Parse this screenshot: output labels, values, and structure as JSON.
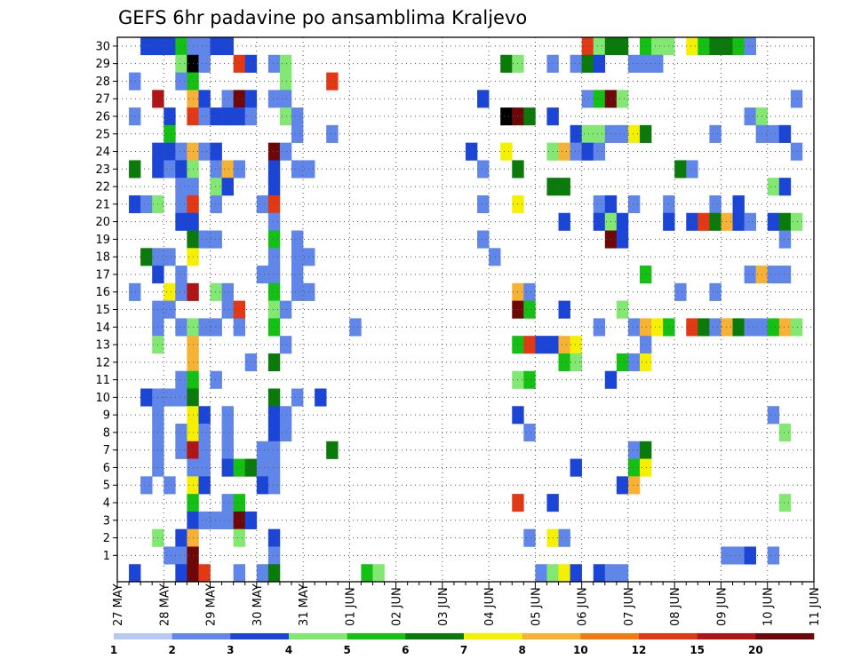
{
  "chart_data": {
    "type": "heatmap",
    "title": "GEFS 6hr padavine po ansamblima Kraljevo",
    "y_labels": [
      "1",
      "2",
      "3",
      "4",
      "5",
      "6",
      "7",
      "8",
      "9",
      "10",
      "11",
      "12",
      "13",
      "14",
      "15",
      "16",
      "17",
      "18",
      "19",
      "20",
      "21",
      "22",
      "23",
      "24",
      "25",
      "26",
      "27",
      "28",
      "29",
      "30"
    ],
    "x_labels": [
      "27 MAY",
      "28 MAY",
      "29 MAY",
      "30 MAY",
      "31 MAY",
      "01 JUN",
      "02 JUN",
      "03 JUN",
      "04 JUN",
      "05 JUN",
      "06 JUN",
      "07 JUN",
      "08 JUN",
      "09 JUN",
      "10 JUN",
      "11 JUN"
    ],
    "steps_per_day": 4,
    "legend": {
      "labels": [
        "1",
        "2",
        "3",
        "4",
        "5",
        "6",
        "7",
        "8",
        "10",
        "12",
        "15",
        "20"
      ],
      "colors": [
        "#b8c9f5",
        "#5f86e8",
        "#1a45d6",
        "#82e872",
        "#13c013",
        "#0a7a0a",
        "#f4f000",
        "#f7b236",
        "#f17a14",
        "#e23814",
        "#b01414",
        "#6e0808"
      ]
    },
    "cells": [
      [
        30,
        2,
        2
      ],
      [
        30,
        3,
        2
      ],
      [
        30,
        4,
        2
      ],
      [
        30,
        5,
        4
      ],
      [
        30,
        6,
        1
      ],
      [
        30,
        7,
        1
      ],
      [
        30,
        8,
        2
      ],
      [
        30,
        9,
        2
      ],
      [
        30,
        40,
        9
      ],
      [
        30,
        41,
        3
      ],
      [
        30,
        42,
        5
      ],
      [
        30,
        43,
        5
      ],
      [
        30,
        45,
        4
      ],
      [
        30,
        46,
        3
      ],
      [
        30,
        47,
        3
      ],
      [
        30,
        49,
        6
      ],
      [
        30,
        50,
        4
      ],
      [
        30,
        51,
        5
      ],
      [
        30,
        52,
        5
      ],
      [
        30,
        53,
        4
      ],
      [
        30,
        54,
        1
      ],
      [
        29,
        5,
        3
      ],
      [
        29,
        6,
        12
      ],
      [
        29,
        7,
        1
      ],
      [
        29,
        10,
        9
      ],
      [
        29,
        11,
        2
      ],
      [
        29,
        13,
        1
      ],
      [
        29,
        14,
        3
      ],
      [
        29,
        33,
        5
      ],
      [
        29,
        34,
        3
      ],
      [
        29,
        37,
        1
      ],
      [
        29,
        39,
        1
      ],
      [
        29,
        40,
        5
      ],
      [
        29,
        41,
        2
      ],
      [
        29,
        44,
        1
      ],
      [
        29,
        45,
        1
      ],
      [
        29,
        46,
        1
      ],
      [
        28,
        1,
        1
      ],
      [
        28,
        5,
        1
      ],
      [
        28,
        6,
        4
      ],
      [
        28,
        14,
        3
      ],
      [
        28,
        18,
        9
      ],
      [
        27,
        3,
        10
      ],
      [
        27,
        6,
        7
      ],
      [
        27,
        7,
        2
      ],
      [
        27,
        9,
        1
      ],
      [
        27,
        10,
        11
      ],
      [
        27,
        11,
        2
      ],
      [
        27,
        13,
        1
      ],
      [
        27,
        14,
        1
      ],
      [
        27,
        31,
        2
      ],
      [
        27,
        40,
        1
      ],
      [
        27,
        41,
        4
      ],
      [
        27,
        42,
        11
      ],
      [
        27,
        43,
        3
      ],
      [
        27,
        58,
        1
      ],
      [
        26,
        1,
        1
      ],
      [
        26,
        4,
        2
      ],
      [
        26,
        6,
        9
      ],
      [
        26,
        7,
        1
      ],
      [
        26,
        8,
        2
      ],
      [
        26,
        9,
        2
      ],
      [
        26,
        10,
        2
      ],
      [
        26,
        11,
        1
      ],
      [
        26,
        14,
        3
      ],
      [
        26,
        15,
        1
      ],
      [
        26,
        33,
        12
      ],
      [
        26,
        34,
        11
      ],
      [
        26,
        35,
        5
      ],
      [
        26,
        37,
        2
      ],
      [
        26,
        54,
        1
      ],
      [
        26,
        55,
        3
      ],
      [
        25,
        4,
        4
      ],
      [
        25,
        15,
        1
      ],
      [
        25,
        18,
        1
      ],
      [
        25,
        39,
        2
      ],
      [
        25,
        40,
        3
      ],
      [
        25,
        41,
        3
      ],
      [
        25,
        42,
        1
      ],
      [
        25,
        43,
        1
      ],
      [
        25,
        44,
        6
      ],
      [
        25,
        45,
        5
      ],
      [
        25,
        51,
        1
      ],
      [
        25,
        55,
        1
      ],
      [
        25,
        56,
        1
      ],
      [
        25,
        57,
        2
      ],
      [
        24,
        3,
        2
      ],
      [
        24,
        4,
        2
      ],
      [
        24,
        5,
        1
      ],
      [
        24,
        6,
        7
      ],
      [
        24,
        7,
        1
      ],
      [
        24,
        8,
        2
      ],
      [
        24,
        13,
        11
      ],
      [
        24,
        14,
        1
      ],
      [
        24,
        30,
        2
      ],
      [
        24,
        33,
        6
      ],
      [
        24,
        37,
        3
      ],
      [
        24,
        38,
        7
      ],
      [
        24,
        39,
        1
      ],
      [
        24,
        40,
        2
      ],
      [
        24,
        41,
        1
      ],
      [
        24,
        58,
        1
      ],
      [
        23,
        1,
        5
      ],
      [
        23,
        3,
        2
      ],
      [
        23,
        4,
        1
      ],
      [
        23,
        5,
        2
      ],
      [
        23,
        6,
        3
      ],
      [
        23,
        8,
        1
      ],
      [
        23,
        9,
        7
      ],
      [
        23,
        10,
        1
      ],
      [
        23,
        13,
        2
      ],
      [
        23,
        15,
        1
      ],
      [
        23,
        16,
        1
      ],
      [
        23,
        31,
        1
      ],
      [
        23,
        34,
        5
      ],
      [
        23,
        48,
        5
      ],
      [
        23,
        49,
        1
      ],
      [
        22,
        5,
        1
      ],
      [
        22,
        6,
        1
      ],
      [
        22,
        8,
        3
      ],
      [
        22,
        9,
        2
      ],
      [
        22,
        13,
        2
      ],
      [
        22,
        37,
        5
      ],
      [
        22,
        38,
        5
      ],
      [
        22,
        56,
        3
      ],
      [
        22,
        57,
        2
      ],
      [
        21,
        1,
        2
      ],
      [
        21,
        2,
        1
      ],
      [
        21,
        3,
        3
      ],
      [
        21,
        5,
        1
      ],
      [
        21,
        6,
        9
      ],
      [
        21,
        8,
        1
      ],
      [
        21,
        12,
        1
      ],
      [
        21,
        13,
        9
      ],
      [
        21,
        31,
        1
      ],
      [
        21,
        34,
        6
      ],
      [
        21,
        41,
        1
      ],
      [
        21,
        42,
        2
      ],
      [
        21,
        44,
        1
      ],
      [
        21,
        47,
        1
      ],
      [
        21,
        51,
        1
      ],
      [
        21,
        53,
        2
      ],
      [
        20,
        5,
        2
      ],
      [
        20,
        6,
        2
      ],
      [
        20,
        13,
        1
      ],
      [
        20,
        38,
        2
      ],
      [
        20,
        41,
        2
      ],
      [
        20,
        42,
        3
      ],
      [
        20,
        43,
        2
      ],
      [
        20,
        47,
        2
      ],
      [
        20,
        49,
        2
      ],
      [
        20,
        50,
        9
      ],
      [
        20,
        51,
        5
      ],
      [
        20,
        52,
        7
      ],
      [
        20,
        53,
        2
      ],
      [
        20,
        54,
        1
      ],
      [
        20,
        56,
        2
      ],
      [
        20,
        57,
        5
      ],
      [
        20,
        58,
        3
      ],
      [
        19,
        6,
        5
      ],
      [
        19,
        7,
        1
      ],
      [
        19,
        8,
        1
      ],
      [
        19,
        13,
        4
      ],
      [
        19,
        15,
        1
      ],
      [
        19,
        31,
        1
      ],
      [
        19,
        42,
        11
      ],
      [
        19,
        43,
        2
      ],
      [
        19,
        57,
        1
      ],
      [
        18,
        2,
        5
      ],
      [
        18,
        3,
        1
      ],
      [
        18,
        4,
        1
      ],
      [
        18,
        6,
        6
      ],
      [
        18,
        13,
        1
      ],
      [
        18,
        15,
        1
      ],
      [
        18,
        16,
        1
      ],
      [
        18,
        32,
        1
      ],
      [
        17,
        3,
        2
      ],
      [
        17,
        5,
        1
      ],
      [
        17,
        12,
        1
      ],
      [
        17,
        13,
        1
      ],
      [
        17,
        15,
        1
      ],
      [
        17,
        45,
        4
      ],
      [
        17,
        54,
        1
      ],
      [
        17,
        55,
        7
      ],
      [
        17,
        56,
        1
      ],
      [
        17,
        57,
        1
      ],
      [
        16,
        1,
        1
      ],
      [
        16,
        4,
        6
      ],
      [
        16,
        5,
        1
      ],
      [
        16,
        6,
        10
      ],
      [
        16,
        8,
        3
      ],
      [
        16,
        9,
        1
      ],
      [
        16,
        13,
        4
      ],
      [
        16,
        15,
        1
      ],
      [
        16,
        16,
        1
      ],
      [
        16,
        34,
        7
      ],
      [
        16,
        35,
        1
      ],
      [
        16,
        48,
        1
      ],
      [
        16,
        51,
        1
      ],
      [
        15,
        3,
        1
      ],
      [
        15,
        4,
        1
      ],
      [
        15,
        9,
        1
      ],
      [
        15,
        10,
        9
      ],
      [
        15,
        13,
        3
      ],
      [
        15,
        14,
        1
      ],
      [
        15,
        34,
        11
      ],
      [
        15,
        35,
        4
      ],
      [
        15,
        38,
        2
      ],
      [
        15,
        43,
        3
      ],
      [
        14,
        3,
        1
      ],
      [
        14,
        5,
        1
      ],
      [
        14,
        6,
        3
      ],
      [
        14,
        7,
        1
      ],
      [
        14,
        8,
        1
      ],
      [
        14,
        10,
        1
      ],
      [
        14,
        13,
        4
      ],
      [
        14,
        20,
        1
      ],
      [
        14,
        41,
        1
      ],
      [
        14,
        44,
        1
      ],
      [
        14,
        45,
        7
      ],
      [
        14,
        46,
        6
      ],
      [
        14,
        47,
        4
      ],
      [
        14,
        49,
        9
      ],
      [
        14,
        50,
        5
      ],
      [
        14,
        51,
        1
      ],
      [
        14,
        52,
        7
      ],
      [
        14,
        53,
        5
      ],
      [
        14,
        54,
        1
      ],
      [
        14,
        55,
        1
      ],
      [
        14,
        56,
        4
      ],
      [
        14,
        57,
        7
      ],
      [
        14,
        58,
        3
      ],
      [
        13,
        3,
        3
      ],
      [
        13,
        6,
        7
      ],
      [
        13,
        14,
        1
      ],
      [
        13,
        34,
        4
      ],
      [
        13,
        35,
        9
      ],
      [
        13,
        36,
        2
      ],
      [
        13,
        37,
        2
      ],
      [
        13,
        38,
        7
      ],
      [
        13,
        39,
        6
      ],
      [
        13,
        45,
        1
      ],
      [
        12,
        6,
        7
      ],
      [
        12,
        11,
        1
      ],
      [
        12,
        13,
        5
      ],
      [
        12,
        38,
        4
      ],
      [
        12,
        39,
        3
      ],
      [
        12,
        43,
        4
      ],
      [
        12,
        44,
        1
      ],
      [
        12,
        45,
        6
      ],
      [
        11,
        5,
        1
      ],
      [
        11,
        6,
        4
      ],
      [
        11,
        8,
        1
      ],
      [
        11,
        34,
        3
      ],
      [
        11,
        35,
        4
      ],
      [
        11,
        42,
        2
      ],
      [
        10,
        2,
        2
      ],
      [
        10,
        3,
        1
      ],
      [
        10,
        4,
        1
      ],
      [
        10,
        5,
        1
      ],
      [
        10,
        6,
        5
      ],
      [
        10,
        13,
        5
      ],
      [
        10,
        15,
        1
      ],
      [
        10,
        17,
        2
      ],
      [
        9,
        3,
        1
      ],
      [
        9,
        6,
        6
      ],
      [
        9,
        7,
        2
      ],
      [
        9,
        9,
        1
      ],
      [
        9,
        13,
        2
      ],
      [
        9,
        14,
        1
      ],
      [
        9,
        34,
        2
      ],
      [
        9,
        56,
        1
      ],
      [
        8,
        3,
        1
      ],
      [
        8,
        5,
        1
      ],
      [
        8,
        6,
        6
      ],
      [
        8,
        7,
        1
      ],
      [
        8,
        9,
        1
      ],
      [
        8,
        13,
        2
      ],
      [
        8,
        14,
        1
      ],
      [
        8,
        35,
        1
      ],
      [
        8,
        57,
        3
      ],
      [
        7,
        3,
        1
      ],
      [
        7,
        5,
        1
      ],
      [
        7,
        6,
        10
      ],
      [
        7,
        7,
        1
      ],
      [
        7,
        9,
        1
      ],
      [
        7,
        12,
        1
      ],
      [
        7,
        13,
        1
      ],
      [
        7,
        18,
        5
      ],
      [
        7,
        44,
        1
      ],
      [
        7,
        45,
        5
      ],
      [
        6,
        3,
        1
      ],
      [
        6,
        6,
        1
      ],
      [
        6,
        7,
        1
      ],
      [
        6,
        9,
        2
      ],
      [
        6,
        10,
        4
      ],
      [
        6,
        11,
        5
      ],
      [
        6,
        12,
        1
      ],
      [
        6,
        13,
        1
      ],
      [
        6,
        39,
        2
      ],
      [
        6,
        44,
        4
      ],
      [
        6,
        45,
        6
      ],
      [
        5,
        2,
        1
      ],
      [
        5,
        4,
        1
      ],
      [
        5,
        6,
        6
      ],
      [
        5,
        7,
        2
      ],
      [
        5,
        12,
        2
      ],
      [
        5,
        13,
        1
      ],
      [
        5,
        43,
        2
      ],
      [
        5,
        44,
        7
      ],
      [
        4,
        6,
        4
      ],
      [
        4,
        9,
        1
      ],
      [
        4,
        10,
        4
      ],
      [
        4,
        34,
        9
      ],
      [
        4,
        37,
        2
      ],
      [
        4,
        57,
        3
      ],
      [
        3,
        6,
        2
      ],
      [
        3,
        7,
        1
      ],
      [
        3,
        8,
        1
      ],
      [
        3,
        9,
        1
      ],
      [
        3,
        10,
        11
      ],
      [
        3,
        11,
        2
      ],
      [
        2,
        3,
        3
      ],
      [
        2,
        5,
        2
      ],
      [
        2,
        6,
        7
      ],
      [
        2,
        10,
        3
      ],
      [
        2,
        13,
        2
      ],
      [
        2,
        35,
        1
      ],
      [
        2,
        37,
        6
      ],
      [
        2,
        38,
        1
      ],
      [
        1,
        4,
        1
      ],
      [
        1,
        5,
        1
      ],
      [
        1,
        6,
        11
      ],
      [
        1,
        13,
        1
      ],
      [
        1,
        52,
        1
      ],
      [
        1,
        53,
        1
      ],
      [
        1,
        54,
        2
      ],
      [
        1,
        56,
        1
      ],
      [
        0,
        1,
        2
      ],
      [
        0,
        5,
        2
      ],
      [
        0,
        6,
        11
      ],
      [
        0,
        7,
        9
      ],
      [
        0,
        10,
        1
      ],
      [
        0,
        12,
        1
      ],
      [
        0,
        13,
        5
      ],
      [
        0,
        21,
        4
      ],
      [
        0,
        22,
        3
      ],
      [
        0,
        36,
        1
      ],
      [
        0,
        37,
        3
      ],
      [
        0,
        38,
        6
      ],
      [
        0,
        39,
        2
      ],
      [
        0,
        41,
        2
      ],
      [
        0,
        42,
        1
      ],
      [
        0,
        43,
        1
      ]
    ]
  }
}
